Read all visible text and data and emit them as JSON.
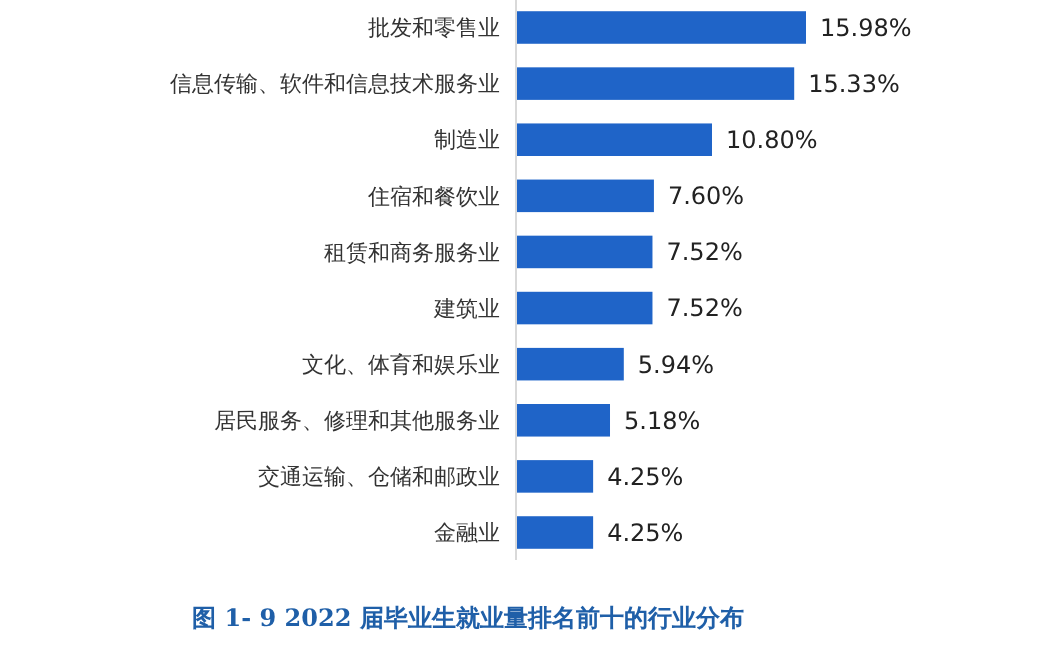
{
  "chart_data": {
    "type": "bar",
    "orientation": "horizontal",
    "title": "图 1- 9   2022 届毕业生就业量排名前十的行业分布",
    "categories": [
      "批发和零售业",
      "信息传输、软件和信息技术服务业",
      "制造业",
      "住宿和餐饮业",
      "租赁和商务服务业",
      "建筑业",
      "文化、体育和娱乐业",
      "居民服务、修理和其他服务业",
      "交通运输、仓储和邮政业",
      "金融业"
    ],
    "values": [
      15.98,
      15.33,
      10.8,
      7.6,
      7.52,
      7.52,
      5.94,
      5.18,
      4.25,
      4.25
    ],
    "value_labels": [
      "15.98%",
      "15.33%",
      "10.80%",
      "7.60%",
      "7.52%",
      "7.52%",
      "5.94%",
      "5.18%",
      "4.25%",
      "4.25%"
    ],
    "color": "#1f64c8"
  }
}
